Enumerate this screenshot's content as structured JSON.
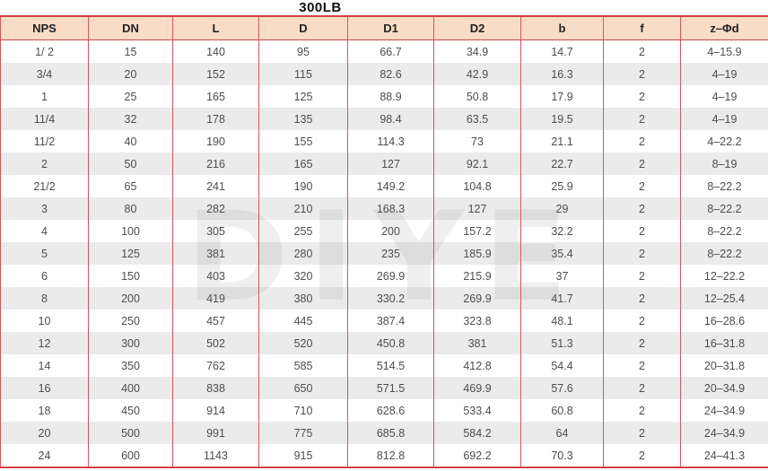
{
  "title": "300LB",
  "watermark": "DIYE",
  "colors": {
    "header_bg": "#f9dcc5",
    "border_red": "#cf4348",
    "separator_red": "#d9565c",
    "row_alt_gray": "#ebebeb",
    "text_gray": "#4d4d4d"
  },
  "table": {
    "columns": [
      "NPS",
      "DN",
      "L",
      "D",
      "D1",
      "D2",
      "b",
      "f",
      "z–Φd"
    ],
    "rows": [
      [
        "1/ 2",
        "15",
        "140",
        "95",
        "66.7",
        "34.9",
        "14.7",
        "2",
        "4–15.9"
      ],
      [
        "3/4",
        "20",
        "152",
        "115",
        "82.6",
        "42.9",
        "16.3",
        "2",
        "4–19"
      ],
      [
        "1",
        "25",
        "165",
        "125",
        "88.9",
        "50.8",
        "17.9",
        "2",
        "4–19"
      ],
      [
        "11/4",
        "32",
        "178",
        "135",
        "98.4",
        "63.5",
        "19.5",
        "2",
        "4–19"
      ],
      [
        "11/2",
        "40",
        "190",
        "155",
        "114.3",
        "73",
        "21.1",
        "2",
        "4–22.2"
      ],
      [
        "2",
        "50",
        "216",
        "165",
        "127",
        "92.1",
        "22.7",
        "2",
        "8–19"
      ],
      [
        "21/2",
        "65",
        "241",
        "190",
        "149.2",
        "104.8",
        "25.9",
        "2",
        "8–22.2"
      ],
      [
        "3",
        "80",
        "282",
        "210",
        "168.3",
        "127",
        "29",
        "2",
        "8–22.2"
      ],
      [
        "4",
        "100",
        "305",
        "255",
        "200",
        "157.2",
        "32.2",
        "2",
        "8–22.2"
      ],
      [
        "5",
        "125",
        "381",
        "280",
        "235",
        "185.9",
        "35.4",
        "2",
        "8–22.2"
      ],
      [
        "6",
        "150",
        "403",
        "320",
        "269.9",
        "215.9",
        "37",
        "2",
        "12–22.2"
      ],
      [
        "8",
        "200",
        "419",
        "380",
        "330.2",
        "269.9",
        "41.7",
        "2",
        "12–25.4"
      ],
      [
        "10",
        "250",
        "457",
        "445",
        "387.4",
        "323.8",
        "48.1",
        "2",
        "16–28.6"
      ],
      [
        "12",
        "300",
        "502",
        "520",
        "450.8",
        "381",
        "51.3",
        "2",
        "16–31.8"
      ],
      [
        "14",
        "350",
        "762",
        "585",
        "514.5",
        "412.8",
        "54.4",
        "2",
        "20–31.8"
      ],
      [
        "16",
        "400",
        "838",
        "650",
        "571.5",
        "469.9",
        "57.6",
        "2",
        "20–34.9"
      ],
      [
        "18",
        "450",
        "914",
        "710",
        "628.6",
        "533.4",
        "60.8",
        "2",
        "24–34.9"
      ],
      [
        "20",
        "500",
        "991",
        "775",
        "685.8",
        "584.2",
        "64",
        "2",
        "24–34.9"
      ],
      [
        "24",
        "600",
        "1143",
        "915",
        "812.8",
        "692.2",
        "70.3",
        "2",
        "24–41.3"
      ]
    ]
  }
}
